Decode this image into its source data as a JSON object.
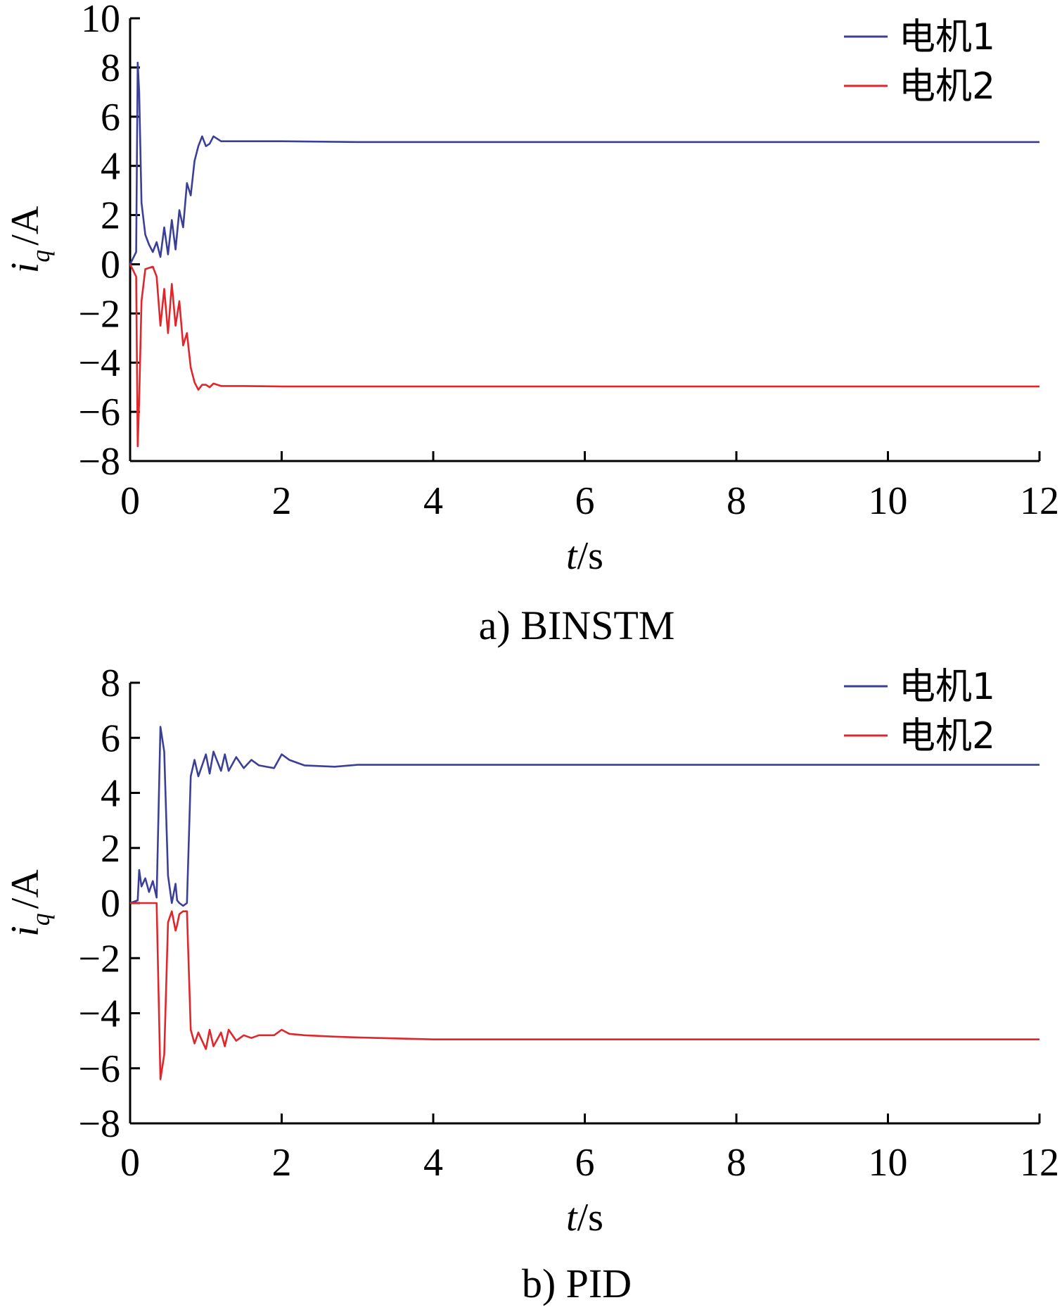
{
  "chart_data": [
    {
      "type": "line",
      "caption": "a) BINSTM",
      "xlabel_italic": "t",
      "xlabel_unit": "/s",
      "ylabel_main": "i",
      "ylabel_sub": "q",
      "ylabel_unit": "/A",
      "xlim": [
        0,
        12
      ],
      "ylim": [
        -8,
        10
      ],
      "xticks": [
        0,
        2,
        4,
        6,
        8,
        10,
        12
      ],
      "yticks": [
        -8,
        -6,
        -4,
        -2,
        0,
        2,
        4,
        6,
        8,
        10
      ],
      "xtick_labels": [
        "0",
        "2",
        "4",
        "6",
        "8",
        "10",
        "12"
      ],
      "ytick_labels": [
        "−8",
        "−6",
        "−4",
        "−2",
        "0",
        "2",
        "4",
        "6",
        "8",
        "10"
      ],
      "grid": false,
      "legend_position": "top-right",
      "series": [
        {
          "name": "电机1",
          "color": "#3b3f97",
          "x": [
            0,
            0.08,
            0.1,
            0.12,
            0.15,
            0.2,
            0.25,
            0.3,
            0.35,
            0.4,
            0.45,
            0.5,
            0.55,
            0.6,
            0.65,
            0.7,
            0.75,
            0.8,
            0.85,
            0.9,
            0.95,
            1.0,
            1.05,
            1.1,
            1.2,
            1.5,
            2.0,
            3.0,
            6.0,
            12.0
          ],
          "values": [
            0,
            0.5,
            8.2,
            7.0,
            2.5,
            1.2,
            0.8,
            0.5,
            0.9,
            0.3,
            1.5,
            0.4,
            1.8,
            0.6,
            2.2,
            1.5,
            3.3,
            2.8,
            4.2,
            4.8,
            5.2,
            4.8,
            4.9,
            5.2,
            5.0,
            5.0,
            5.0,
            4.97,
            4.97,
            4.97
          ]
        },
        {
          "name": "电机2",
          "color": "#e0262b",
          "x": [
            0,
            0.08,
            0.1,
            0.12,
            0.15,
            0.2,
            0.3,
            0.35,
            0.4,
            0.45,
            0.5,
            0.55,
            0.6,
            0.65,
            0.7,
            0.75,
            0.8,
            0.85,
            0.9,
            0.95,
            1.0,
            1.05,
            1.1,
            1.2,
            1.5,
            2.0,
            3.0,
            6.0,
            12.0
          ],
          "values": [
            0,
            -0.5,
            -7.4,
            -5.5,
            -1.5,
            -0.2,
            -0.1,
            -0.5,
            -2.5,
            -1.0,
            -2.8,
            -0.8,
            -2.5,
            -1.5,
            -3.3,
            -2.8,
            -4.2,
            -4.8,
            -5.1,
            -4.9,
            -4.9,
            -5.0,
            -4.85,
            -4.95,
            -4.95,
            -4.97,
            -4.97,
            -4.97,
            -4.97
          ]
        }
      ]
    },
    {
      "type": "line",
      "caption": "b) PID",
      "xlabel_italic": "t",
      "xlabel_unit": "/s",
      "ylabel_main": "i",
      "ylabel_sub": "q",
      "ylabel_unit": "/A",
      "xlim": [
        0,
        12
      ],
      "ylim": [
        -8,
        8
      ],
      "xticks": [
        0,
        2,
        4,
        6,
        8,
        10,
        12
      ],
      "yticks": [
        -8,
        -6,
        -4,
        -2,
        0,
        2,
        4,
        6,
        8
      ],
      "xtick_labels": [
        "0",
        "2",
        "4",
        "6",
        "8",
        "10",
        "12"
      ],
      "ytick_labels": [
        "−8",
        "−6",
        "−4",
        "−2",
        "0",
        "2",
        "4",
        "6",
        "8"
      ],
      "grid": false,
      "legend_position": "top-right",
      "series": [
        {
          "name": "电机1",
          "color": "#3b3f97",
          "x": [
            0,
            0.1,
            0.12,
            0.15,
            0.2,
            0.25,
            0.3,
            0.35,
            0.4,
            0.45,
            0.5,
            0.55,
            0.6,
            0.62,
            0.65,
            0.7,
            0.75,
            0.8,
            0.85,
            0.9,
            1.0,
            1.05,
            1.1,
            1.2,
            1.25,
            1.3,
            1.4,
            1.5,
            1.6,
            1.7,
            1.9,
            2.0,
            2.1,
            2.3,
            2.7,
            3.0,
            4.0,
            6.0,
            12.0
          ],
          "values": [
            0,
            0.1,
            1.2,
            0.6,
            0.9,
            0.4,
            0.8,
            0.2,
            6.4,
            5.5,
            1.0,
            0.0,
            0.7,
            0.1,
            0.0,
            -0.1,
            0.0,
            4.6,
            5.2,
            4.6,
            5.4,
            4.7,
            5.5,
            4.8,
            5.4,
            4.8,
            5.3,
            4.9,
            5.2,
            5.0,
            4.9,
            5.4,
            5.2,
            5.0,
            4.95,
            5.02,
            5.02,
            5.02,
            5.02
          ]
        },
        {
          "name": "电机2",
          "color": "#e0262b",
          "x": [
            0,
            0.2,
            0.35,
            0.4,
            0.45,
            0.5,
            0.55,
            0.6,
            0.62,
            0.65,
            0.7,
            0.75,
            0.8,
            0.85,
            0.9,
            1.0,
            1.05,
            1.1,
            1.2,
            1.25,
            1.3,
            1.4,
            1.5,
            1.6,
            1.7,
            1.9,
            2.0,
            2.1,
            2.3,
            2.7,
            3.0,
            4.0,
            6.0,
            12.0
          ],
          "values": [
            0,
            0,
            0,
            -6.4,
            -5.5,
            -0.7,
            -0.3,
            -1.0,
            -0.8,
            -0.4,
            -0.3,
            -0.3,
            -4.6,
            -5.1,
            -4.7,
            -5.3,
            -4.6,
            -5.2,
            -4.7,
            -5.2,
            -4.6,
            -5.0,
            -4.8,
            -4.9,
            -4.8,
            -4.8,
            -4.6,
            -4.75,
            -4.8,
            -4.85,
            -4.88,
            -4.95,
            -4.95,
            -4.95
          ]
        }
      ]
    }
  ]
}
